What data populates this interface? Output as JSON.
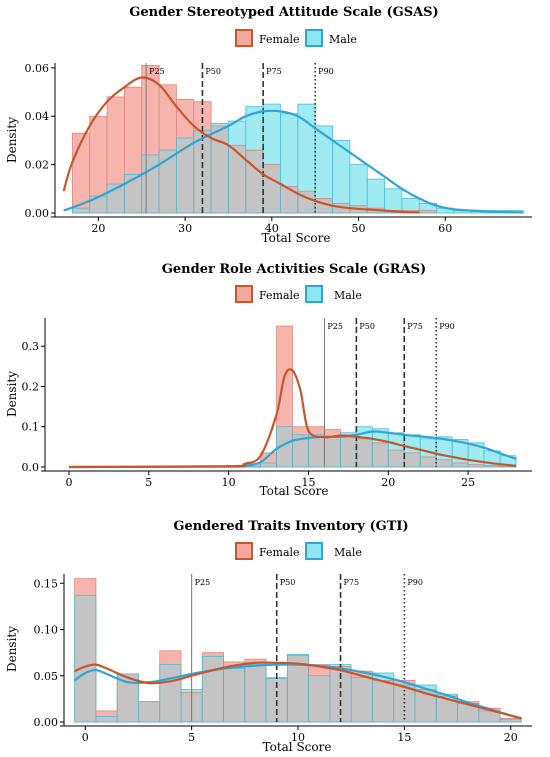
{
  "colors": {
    "female_line": "#C8562B",
    "male_line": "#2EA6D6",
    "female_fill": "#F6A79F",
    "male_fill": "#8FE6EF",
    "overlap_fill": "#C4C4C4",
    "hist_edge_female": "#D98A7C",
    "hist_edge_male": "#4DBCD6"
  },
  "chart_data": [
    {
      "type": "histogram-density",
      "title": "Gender Stereotyped Attitude Scale (GSAS)",
      "xlabel": "Total Score",
      "ylabel": "Density",
      "xlim": [
        15,
        70
      ],
      "ylim": [
        0,
        0.062
      ],
      "xticks": [
        20,
        30,
        40,
        50,
        60
      ],
      "xtick_labels": [
        "20",
        "30",
        "40",
        "50",
        "60"
      ],
      "yticks": [
        0,
        0.02,
        0.04,
        0.06
      ],
      "ytick_labels": [
        "0.00",
        "0.02",
        "0.04",
        "0.06"
      ],
      "legend_position": "top-center",
      "bin_edges": [
        17,
        19,
        21,
        23,
        25,
        27,
        29,
        31,
        33,
        35,
        37,
        39,
        41,
        43,
        45,
        47,
        49,
        51,
        53,
        55,
        57,
        59,
        61,
        63,
        65,
        67,
        69
      ],
      "series": [
        {
          "name": "Female",
          "hist": [
            0.033,
            0.04,
            0.048,
            0.052,
            0.061,
            0.053,
            0.047,
            0.046,
            0.036,
            0.028,
            0.026,
            0.02,
            0.011,
            0.009,
            0.006,
            0.004,
            0.003,
            0.002,
            0.001,
            0.001,
            0.001,
            0,
            0,
            0,
            0,
            0
          ],
          "density_x": [
            16,
            17,
            19,
            21,
            23,
            25,
            27,
            29,
            31,
            33,
            35,
            37,
            39,
            41,
            43,
            45,
            47,
            49,
            51,
            53,
            55,
            57
          ],
          "density_y": [
            0.009,
            0.021,
            0.036,
            0.046,
            0.052,
            0.056,
            0.053,
            0.044,
            0.036,
            0.031,
            0.028,
            0.022,
            0.016,
            0.012,
            0.008,
            0.005,
            0.003,
            0.002,
            0.0015,
            0.001,
            0.0005,
            0.0002
          ]
        },
        {
          "name": "Male",
          "hist": [
            0.002,
            0.007,
            0.012,
            0.016,
            0.024,
            0.026,
            0.031,
            0.034,
            0.037,
            0.038,
            0.044,
            0.045,
            0.041,
            0.045,
            0.036,
            0.03,
            0.02,
            0.014,
            0.01,
            0.006,
            0.004,
            0.002,
            0.001,
            0.001,
            0.001,
            0.001
          ],
          "density_x": [
            16,
            19,
            23,
            27,
            31,
            35,
            37,
            39,
            41,
            43,
            45,
            47,
            49,
            51,
            53,
            55,
            57,
            59,
            61,
            63,
            66,
            69
          ],
          "density_y": [
            0.001,
            0.005,
            0.012,
            0.02,
            0.029,
            0.036,
            0.04,
            0.042,
            0.042,
            0.04,
            0.035,
            0.03,
            0.025,
            0.02,
            0.015,
            0.01,
            0.006,
            0.003,
            0.0015,
            0.001,
            0.0005,
            0.0002
          ]
        }
      ],
      "percentiles": [
        {
          "label": "P25",
          "value": 25.5,
          "style": "solid"
        },
        {
          "label": "P50",
          "value": 32,
          "style": "dashed"
        },
        {
          "label": "P75",
          "value": 39,
          "style": "dashed"
        },
        {
          "label": "P90",
          "value": 45,
          "style": "dotted"
        }
      ]
    },
    {
      "type": "histogram-density",
      "title": "Gender Role Activities Scale (GRAS)",
      "xlabel": "Total Score",
      "ylabel": "Density",
      "xlim": [
        -1.5,
        29
      ],
      "ylim": [
        0,
        0.37
      ],
      "xticks": [
        0,
        5,
        10,
        15,
        20,
        25
      ],
      "xtick_labels": [
        "0",
        "5",
        "10",
        "15",
        "20",
        "25"
      ],
      "yticks": [
        0,
        0.1,
        0.2,
        0.3
      ],
      "ytick_labels": [
        "0.0",
        "0.1",
        "0.2",
        "0.3"
      ],
      "legend_position": "top-center",
      "bin_edges": [
        10,
        11,
        12,
        13,
        14,
        15,
        16,
        17,
        18,
        19,
        20,
        21,
        22,
        23,
        24,
        25,
        26,
        27,
        28
      ],
      "series": [
        {
          "name": "Female",
          "hist": [
            0.002,
            0.008,
            0.035,
            0.35,
            0.1,
            0.1,
            0.093,
            0.08,
            0.07,
            0.06,
            0.042,
            0.035,
            0.025,
            0.018,
            0.01,
            0.006,
            0.004,
            0.002
          ],
          "density_x": [
            0,
            10,
            11,
            12,
            13,
            13.5,
            14,
            14.5,
            15,
            16,
            17,
            18,
            19,
            20,
            21,
            22,
            23,
            24,
            25,
            26,
            27,
            28
          ],
          "density_y": [
            0,
            0.002,
            0.008,
            0.028,
            0.13,
            0.225,
            0.24,
            0.19,
            0.09,
            0.074,
            0.078,
            0.075,
            0.07,
            0.062,
            0.052,
            0.043,
            0.033,
            0.025,
            0.018,
            0.012,
            0.007,
            0.003
          ]
        },
        {
          "name": "Male",
          "hist": [
            0,
            0.001,
            0.01,
            0.1,
            0.08,
            0.08,
            0.075,
            0.085,
            0.1,
            0.095,
            0.085,
            0.08,
            0.07,
            0.075,
            0.068,
            0.06,
            0.04,
            0.028
          ],
          "density_x": [
            0,
            10,
            11,
            12,
            13,
            14,
            15,
            16,
            17,
            18,
            19,
            20,
            21,
            22,
            23,
            24,
            25,
            26,
            27,
            28
          ],
          "density_y": [
            0,
            0.001,
            0.003,
            0.012,
            0.045,
            0.065,
            0.072,
            0.075,
            0.075,
            0.08,
            0.088,
            0.085,
            0.08,
            0.076,
            0.072,
            0.066,
            0.058,
            0.048,
            0.034,
            0.02
          ]
        }
      ],
      "percentiles": [
        {
          "label": "P25",
          "value": 16,
          "style": "solid"
        },
        {
          "label": "P50",
          "value": 18,
          "style": "dashed"
        },
        {
          "label": "P75",
          "value": 21,
          "style": "dashed"
        },
        {
          "label": "P90",
          "value": 23,
          "style": "dotted"
        }
      ]
    },
    {
      "type": "histogram-density",
      "title": "Gendered Traits Inventory (GTI)",
      "xlabel": "Total Score",
      "ylabel": "Density",
      "xlim": [
        -1,
        21
      ],
      "ylim": [
        0,
        0.16
      ],
      "xticks": [
        0,
        5,
        10,
        15,
        20
      ],
      "xtick_labels": [
        "0",
        "5",
        "10",
        "15",
        "20"
      ],
      "yticks": [
        0,
        0.05,
        0.1,
        0.15
      ],
      "ytick_labels": [
        "0.00",
        "0.05",
        "0.10",
        "0.15"
      ],
      "legend_position": "top-center",
      "bin_edges": [
        -0.5,
        0.5,
        1.5,
        2.5,
        3.5,
        4.5,
        5.5,
        6.5,
        7.5,
        8.5,
        9.5,
        10.5,
        11.5,
        12.5,
        13.5,
        14.5,
        15.5,
        16.5,
        17.5,
        18.5,
        19.5,
        20.5
      ],
      "series": [
        {
          "name": "Female",
          "hist": [
            0.155,
            0.012,
            0.052,
            0.022,
            0.077,
            0.032,
            0.075,
            0.065,
            0.068,
            0.048,
            0.072,
            0.062,
            0.06,
            0.055,
            0.045,
            0.045,
            0.035,
            0.028,
            0.022,
            0.015,
            0.004
          ],
          "density_x": [
            -0.5,
            0,
            0.5,
            1,
            2,
            3,
            4,
            5,
            6,
            7,
            8,
            9,
            10,
            11,
            12,
            13,
            14,
            15,
            16,
            17,
            18,
            19,
            20,
            20.5
          ],
          "density_y": [
            0.055,
            0.06,
            0.062,
            0.058,
            0.048,
            0.042,
            0.044,
            0.05,
            0.056,
            0.061,
            0.064,
            0.064,
            0.063,
            0.06,
            0.056,
            0.05,
            0.044,
            0.038,
            0.031,
            0.025,
            0.019,
            0.013,
            0.007,
            0.004
          ]
        },
        {
          "name": "Male",
          "hist": [
            0.137,
            0.006,
            0.052,
            0.022,
            0.062,
            0.035,
            0.071,
            0.058,
            0.062,
            0.047,
            0.073,
            0.05,
            0.062,
            0.048,
            0.053,
            0.04,
            0.04,
            0.03,
            0.02,
            0.012,
            0.003
          ],
          "density_x": [
            -0.5,
            0,
            0.5,
            1,
            2,
            3,
            4,
            5,
            6,
            7,
            8,
            9,
            10,
            11,
            12,
            13,
            14,
            15,
            16,
            17,
            18,
            19,
            20,
            20.5
          ],
          "density_y": [
            0.045,
            0.053,
            0.056,
            0.052,
            0.043,
            0.043,
            0.047,
            0.052,
            0.056,
            0.059,
            0.061,
            0.062,
            0.062,
            0.061,
            0.058,
            0.054,
            0.049,
            0.043,
            0.036,
            0.029,
            0.021,
            0.014,
            0.007,
            0.004
          ]
        }
      ],
      "percentiles": [
        {
          "label": "P25",
          "value": 5,
          "style": "solid"
        },
        {
          "label": "P50",
          "value": 9,
          "style": "dashed"
        },
        {
          "label": "P75",
          "value": 12,
          "style": "dashed"
        },
        {
          "label": "P90",
          "value": 15,
          "style": "dotted"
        }
      ]
    }
  ]
}
